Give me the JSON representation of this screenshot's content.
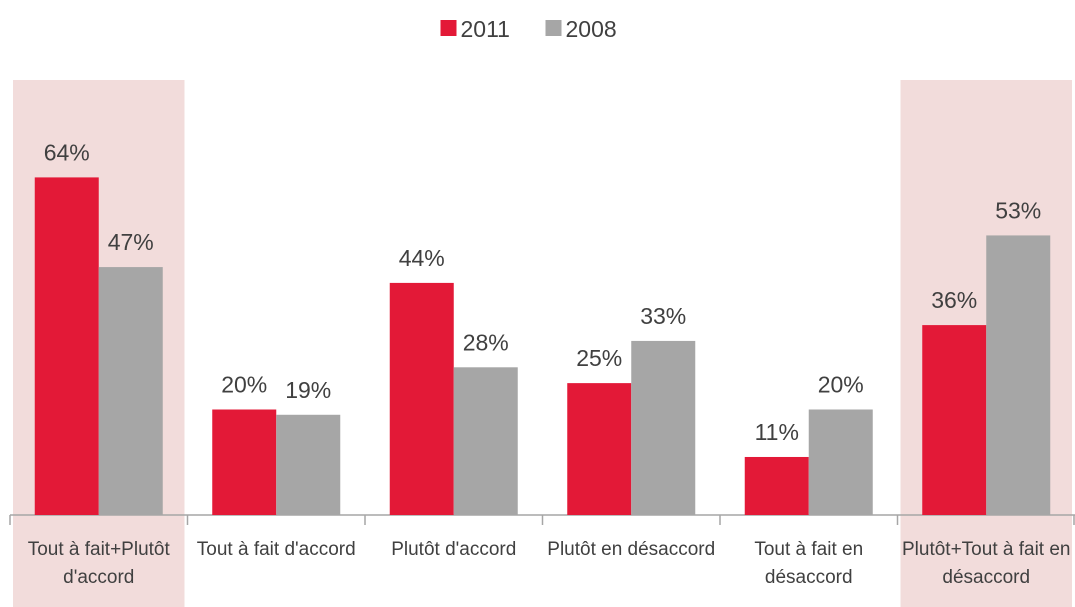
{
  "chart_data": {
    "type": "bar",
    "categories": [
      "Tout à fait+Plutôt d'accord",
      "Tout à fait d'accord",
      "Plutôt d'accord",
      "Plutôt en désaccord",
      "Tout à fait en désaccord",
      "Plutôt+Tout à fait en désaccord"
    ],
    "series": [
      {
        "name": "2011",
        "color": "#e31937",
        "values": [
          64,
          20,
          44,
          25,
          11,
          36
        ],
        "value_labels": [
          "64%",
          "20%",
          "44%",
          "25%",
          "11%",
          "36%"
        ]
      },
      {
        "name": "2008",
        "color": "#a6a6a6",
        "values": [
          47,
          19,
          28,
          33,
          20,
          53
        ],
        "value_labels": [
          "47%",
          "19%",
          "28%",
          "33%",
          "20%",
          "53%"
        ]
      }
    ],
    "ylim": [
      0,
      80
    ],
    "highlight_categories": [
      0,
      5
    ],
    "highlight_color": "#f2dcdb",
    "legend": "top"
  }
}
